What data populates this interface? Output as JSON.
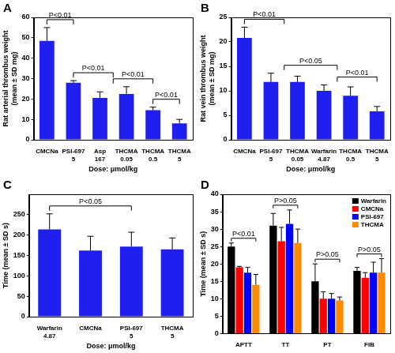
{
  "chart_data": [
    {
      "type": "bar",
      "title": "A",
      "y_label": "Rat arterial thrombus weight (mean ± SD mg)",
      "x_label": "Dose: μmol/kg",
      "categories": [
        "CMCNa",
        "PSI-697 5",
        "Asp 167",
        "THCMA 0.05",
        "THCMA 0.5",
        "THCMA 5"
      ],
      "values": [
        48.5,
        28,
        20.5,
        22.5,
        14.5,
        8
      ],
      "errors": [
        6.5,
        1,
        3,
        3.5,
        1.5,
        2
      ],
      "color": "#1f1ff0",
      "ylim": [
        0,
        60
      ],
      "yticks": [
        0,
        10,
        20,
        30,
        40,
        50,
        60
      ],
      "grid": false,
      "annotations": [
        {
          "text": "P<0.01",
          "from": [
            0
          ],
          "to": [
            1
          ]
        },
        {
          "text": "P<0.01",
          "from": [
            1
          ],
          "to": [
            2,
            3
          ]
        },
        {
          "text": "P<0.01",
          "from": [
            2,
            3
          ],
          "to": [
            4
          ]
        },
        {
          "text": "P<0.01",
          "from": [
            4
          ],
          "to": [
            5
          ]
        }
      ]
    },
    {
      "type": "bar",
      "title": "B",
      "y_label": "Rat vein thrombus weight (mean ± SD mg)",
      "x_label": "Dose: μmol/kg",
      "categories": [
        "CMCNa",
        "PSI-697 5",
        "THCMA 0.05",
        "Warfarin 4.87",
        "THCMA 0.5",
        "THCMA 5"
      ],
      "values": [
        20.8,
        11.8,
        11.8,
        10,
        9,
        5.8
      ],
      "errors": [
        2.2,
        1.8,
        1.2,
        1.2,
        1.8,
        1
      ],
      "color": "#1f1ff0",
      "ylim": [
        0,
        25
      ],
      "yticks": [
        0,
        5,
        10,
        15,
        20,
        25
      ],
      "grid": false,
      "annotations": [
        {
          "text": "P<0.01",
          "from": [
            0
          ],
          "to": [
            1,
            2
          ]
        },
        {
          "text": "P<0.05",
          "from": [
            1,
            2
          ],
          "to": [
            3,
            4
          ]
        },
        {
          "text": "P<0.01",
          "from": [
            3,
            4
          ],
          "to": [
            5
          ]
        }
      ]
    },
    {
      "type": "bar",
      "title": "C",
      "y_label": "Time (mean ± SD s)",
      "x_label": "Dose: μmol/kg",
      "categories": [
        "Warfarin 4.87",
        "CMCNa",
        "PSI-697 5",
        "THCMA 5"
      ],
      "values": [
        214,
        162,
        172,
        165
      ],
      "errors": [
        38,
        35,
        35,
        28
      ],
      "color": "#1f1ff0",
      "ylim": [
        0,
        300
      ],
      "yticks": [
        0,
        50,
        100,
        150,
        200,
        250
      ],
      "grid": false,
      "annotations": [
        {
          "text": "P<0.05",
          "from": [
            0
          ],
          "to": [
            1,
            2,
            3
          ]
        }
      ]
    },
    {
      "type": "bar",
      "title": "D",
      "y_label": "Time (mean ± SD s)",
      "categories": [
        "APTT",
        "TT",
        "PT",
        "FIB"
      ],
      "series": [
        {
          "name": "Warfarin",
          "color": "#000000",
          "values": [
            25,
            31,
            15,
            18
          ],
          "errors": [
            1,
            3.5,
            5,
            1
          ]
        },
        {
          "name": "CMCNa",
          "color": "#ff0000",
          "values": [
            19,
            26.5,
            10,
            16
          ],
          "errors": [
            0.3,
            4,
            2,
            1.5
          ]
        },
        {
          "name": "PSI-697",
          "color": "#0000ff",
          "values": [
            17.5,
            31.5,
            10,
            17.5
          ],
          "errors": [
            1.5,
            4,
            1.5,
            3
          ]
        },
        {
          "name": "THCMA",
          "color": "#ff8c00",
          "values": [
            14,
            26,
            9.5,
            17.5
          ],
          "errors": [
            3,
            4,
            1,
            4
          ]
        }
      ],
      "ylim": [
        0,
        40
      ],
      "yticks": [
        0,
        5,
        10,
        15,
        20,
        25,
        30,
        35,
        40
      ],
      "grid": false,
      "legend": "upper right",
      "annotations": [
        {
          "text": "P<0.01",
          "category": 0
        },
        {
          "text": "P>0.05",
          "category": 1
        },
        {
          "text": "P>0.05",
          "category": 2
        },
        {
          "text": "P>0.05",
          "category": 3
        }
      ]
    }
  ]
}
